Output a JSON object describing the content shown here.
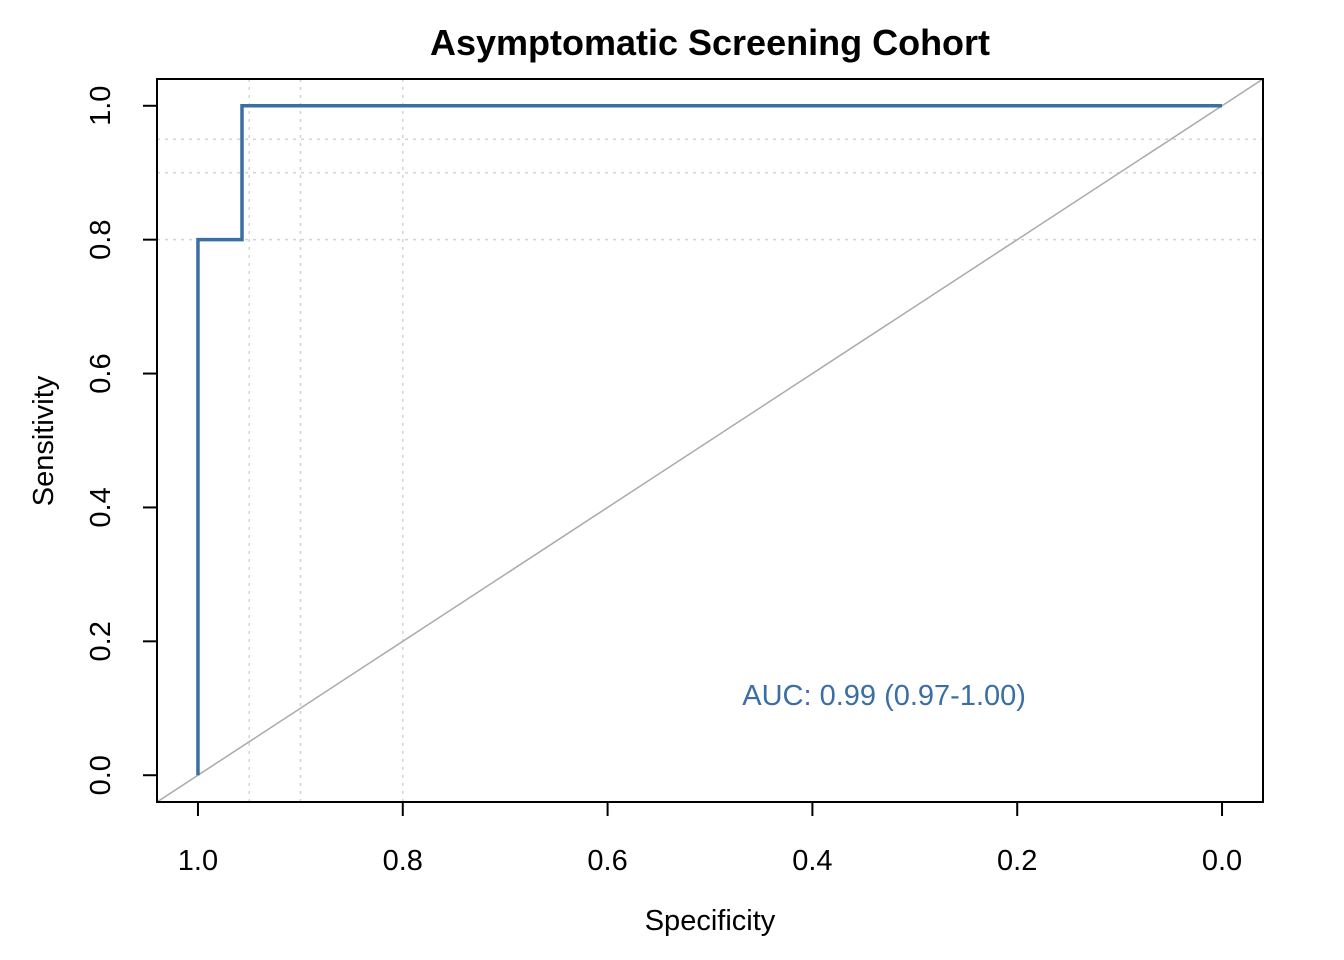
{
  "chart_data": {
    "type": "line",
    "title": "Asymptomatic Screening Cohort",
    "xlabel": "Specificity",
    "ylabel": "Sensitivity",
    "x_reversed": true,
    "xlim": [
      1.04,
      -0.04
    ],
    "ylim": [
      -0.04,
      1.04
    ],
    "xticks": [
      1.0,
      0.8,
      0.6,
      0.4,
      0.2,
      0.0
    ],
    "xtick_labels": [
      "1.0",
      "0.8",
      "0.6",
      "0.4",
      "0.2",
      "0.0"
    ],
    "yticks": [
      0.0,
      0.2,
      0.4,
      0.6,
      0.8,
      1.0
    ],
    "ytick_labels": [
      "0.0",
      "0.2",
      "0.4",
      "0.6",
      "0.8",
      "1.0"
    ],
    "grid": {
      "x": [
        0.95,
        0.9,
        0.8
      ],
      "y": [
        0.8,
        0.9,
        0.95
      ],
      "style": "dotted",
      "color": "#d3d3d3"
    },
    "series": [
      {
        "color": "#3a6ea5",
        "x": [
          1.0,
          1.0,
          0.957,
          0.957,
          0.0
        ],
        "y": [
          0.0,
          0.8,
          0.8,
          1.0,
          1.0
        ]
      }
    ],
    "reference_line": {
      "from": [
        1.0,
        0.0
      ],
      "to": [
        0.0,
        1.0
      ],
      "color": "#aaaaaa"
    },
    "annotation": {
      "text": "AUC: 0.99 (0.97-1.00)",
      "x": 0.33,
      "y": 0.12,
      "color": "#3a6ea5"
    }
  }
}
